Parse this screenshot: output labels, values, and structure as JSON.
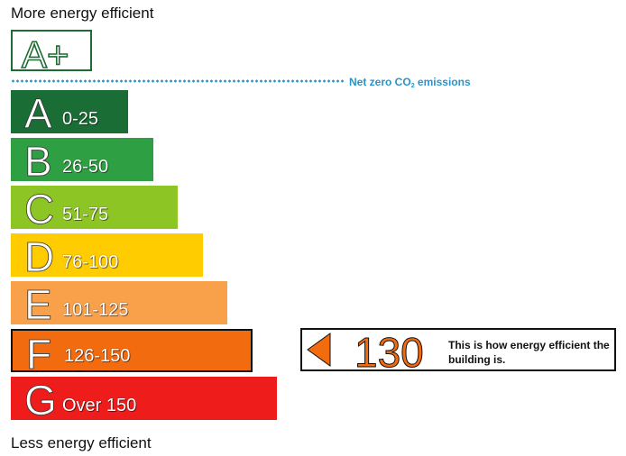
{
  "top_caption": "More energy efficient",
  "bottom_caption": "Less energy efficient",
  "aplus": {
    "label": "A+"
  },
  "net_zero": {
    "label_before": "Net zero CO",
    "label_sub": "2",
    "label_after": " emissions"
  },
  "bands": [
    {
      "letter": "A",
      "range": "0-25",
      "color": "#1a6e35",
      "current": false
    },
    {
      "letter": "B",
      "range": "26-50",
      "color": "#2ea043",
      "current": false
    },
    {
      "letter": "C",
      "range": "51-75",
      "color": "#8dc525",
      "current": false
    },
    {
      "letter": "D",
      "range": "76-100",
      "color": "#ffcc00",
      "current": false
    },
    {
      "letter": "E",
      "range": "101-125",
      "color": "#f9a04a",
      "current": false
    },
    {
      "letter": "F",
      "range": "126-150",
      "color": "#f26b0f",
      "current": true
    },
    {
      "letter": "G",
      "range": "Over 150",
      "color": "#ef1c1c",
      "current": false
    }
  ],
  "indicator": {
    "value": "130",
    "color": "#f26b0f",
    "text": "This is how energy efficient the building is."
  }
}
